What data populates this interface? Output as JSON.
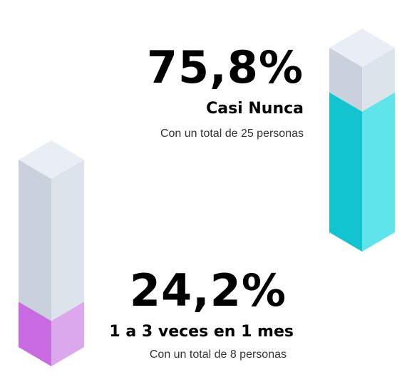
{
  "chart_data": {
    "type": "bar",
    "style": "isometric-3d-columns",
    "categories": [
      "Casi Nunca",
      "1 a 3 veces en 1 mes"
    ],
    "values": [
      75.8,
      24.2
    ],
    "value_labels": [
      "75,8%",
      "24,2%"
    ],
    "subtitles": [
      "Con un total de 25 personas",
      "Con un total de 8 personas"
    ],
    "counts": [
      25,
      8
    ],
    "title": "",
    "xlabel": "",
    "ylabel": "",
    "ylim": [
      0,
      100
    ],
    "grid": false,
    "colors": {
      "bar_0_front": "#12c4cf",
      "bar_0_side": "#5fe4ea",
      "bar_1_front": "#c96be0",
      "bar_1_side": "#dba9eb",
      "empty_front": "#c9d1dc",
      "empty_side": "#dde3eb",
      "top": "#e9eef4"
    }
  }
}
